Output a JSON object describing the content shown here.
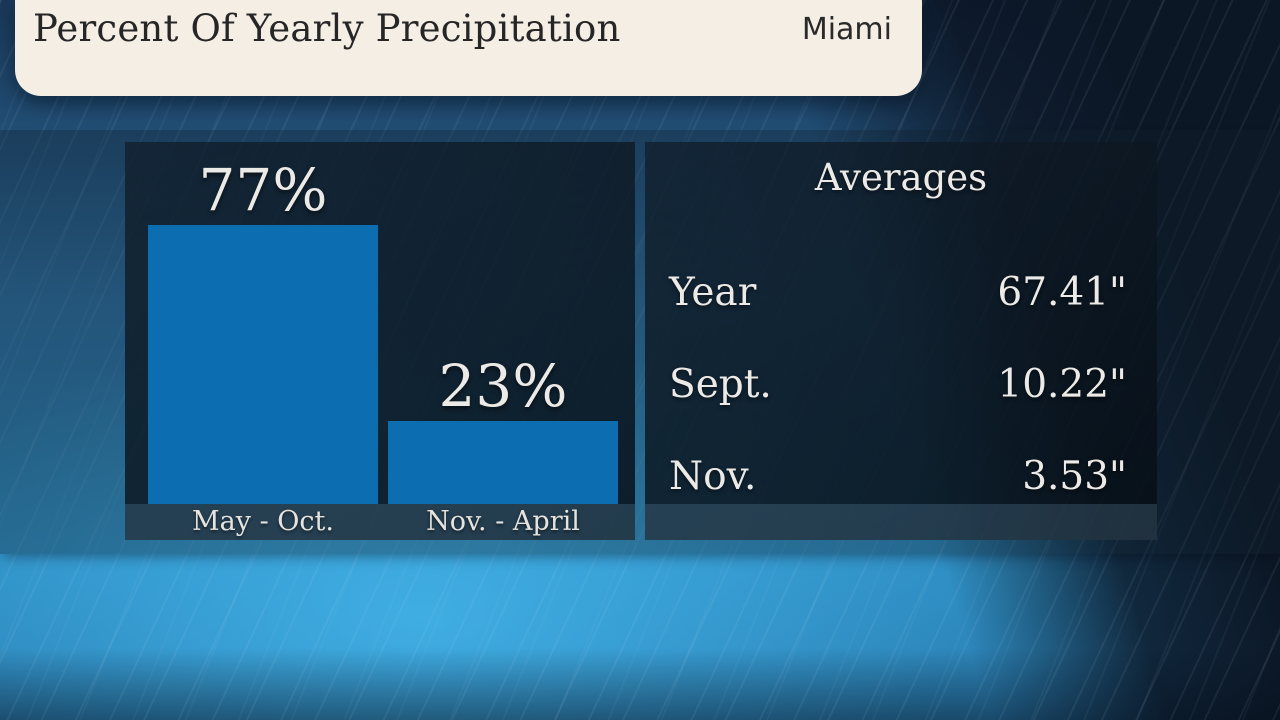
{
  "header": {
    "title": "Percent Of Yearly Precipitation",
    "city": "Miami"
  },
  "chart_data": {
    "type": "bar",
    "title": "Percent Of Yearly Precipitation",
    "location": "Miami",
    "categories": [
      "May - Oct.",
      "Nov. - April"
    ],
    "values": [
      77,
      23
    ],
    "value_labels": [
      "77%",
      "23%"
    ],
    "unit": "%",
    "ylim": [
      0,
      100
    ],
    "grid": false,
    "legend": false,
    "bar_color": "#0c6db1"
  },
  "averages": {
    "title": "Averages",
    "rows": [
      {
        "label": "Year",
        "value": "67.41\""
      },
      {
        "label": "Sept.",
        "value": "10.22\""
      },
      {
        "label": "Nov.",
        "value": "3.53\""
      }
    ]
  },
  "colors": {
    "bar": "#0c6db1",
    "header_bg": "#f4eee5",
    "header_text": "#262626",
    "panel_text": "#eceae6"
  }
}
